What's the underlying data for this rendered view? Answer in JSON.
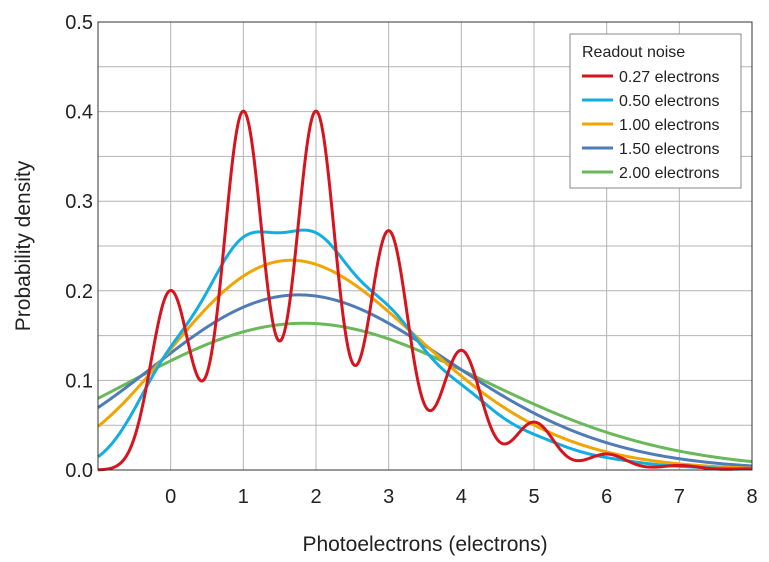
{
  "chart_data": {
    "type": "line",
    "xlabel": "Photoelectrons (electrons)",
    "ylabel": "Probability density",
    "xlim": [
      -1,
      8
    ],
    "ylim": [
      0,
      0.5
    ],
    "x_ticks": [
      "0",
      "1",
      "2",
      "3",
      "4",
      "5",
      "6",
      "7",
      "8"
    ],
    "y_ticks": [
      "0.0",
      "0.1",
      "0.2",
      "0.3",
      "0.4",
      "0.5"
    ],
    "grid": true,
    "legend": {
      "title": "Readout noise",
      "placement": "top-right"
    },
    "poisson_mean": 2,
    "series": [
      {
        "name": "0.27 electrons",
        "sigma": 0.27,
        "color": "#d7141e"
      },
      {
        "name": "0.50 electrons",
        "sigma": 0.5,
        "color": "#12aee2"
      },
      {
        "name": "1.00 electrons",
        "sigma": 1.0,
        "color": "#f0a500"
      },
      {
        "name": "1.50 electrons",
        "sigma": 1.5,
        "color": "#4f7cb7"
      },
      {
        "name": "2.00 electrons",
        "sigma": 2.0,
        "color": "#6ab85a"
      }
    ]
  }
}
